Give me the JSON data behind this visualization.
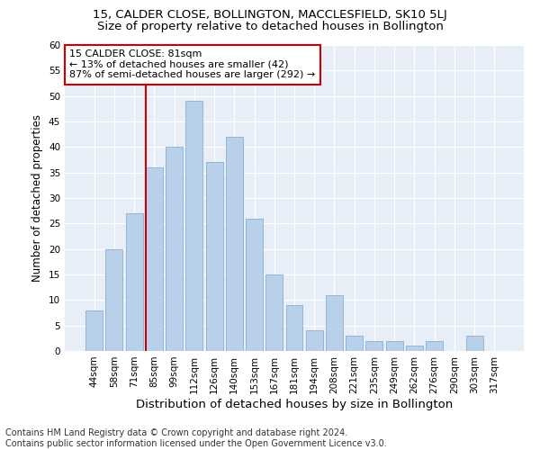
{
  "title": "15, CALDER CLOSE, BOLLINGTON, MACCLESFIELD, SK10 5LJ",
  "subtitle": "Size of property relative to detached houses in Bollington",
  "xlabel": "Distribution of detached houses by size in Bollington",
  "ylabel": "Number of detached properties",
  "categories": [
    "44sqm",
    "58sqm",
    "71sqm",
    "85sqm",
    "99sqm",
    "112sqm",
    "126sqm",
    "140sqm",
    "153sqm",
    "167sqm",
    "181sqm",
    "194sqm",
    "208sqm",
    "221sqm",
    "235sqm",
    "249sqm",
    "262sqm",
    "276sqm",
    "290sqm",
    "303sqm",
    "317sqm"
  ],
  "values": [
    8,
    20,
    27,
    36,
    40,
    49,
    37,
    42,
    26,
    15,
    9,
    4,
    11,
    3,
    2,
    2,
    1,
    2,
    0,
    3,
    0
  ],
  "bar_color": "#b8d0ea",
  "bar_edge_color": "#8ab0d0",
  "background_color": "#e8eef8",
  "grid_color": "#ffffff",
  "vline_color": "#cc0000",
  "vline_x_index": 2.57,
  "annotation_title": "15 CALDER CLOSE: 81sqm",
  "annotation_line1": "← 13% of detached houses are smaller (42)",
  "annotation_line2": "87% of semi-detached houses are larger (292) →",
  "annotation_box_color": "#ffffff",
  "annotation_box_edge": "#cc0000",
  "ylim": [
    0,
    60
  ],
  "yticks": [
    0,
    5,
    10,
    15,
    20,
    25,
    30,
    35,
    40,
    45,
    50,
    55,
    60
  ],
  "footer": "Contains HM Land Registry data © Crown copyright and database right 2024.\nContains public sector information licensed under the Open Government Licence v3.0.",
  "title_fontsize": 9.5,
  "subtitle_fontsize": 9.5,
  "xlabel_fontsize": 9.5,
  "ylabel_fontsize": 8.5,
  "tick_fontsize": 7.5,
  "annotation_fontsize": 8.0,
  "footer_fontsize": 7.0,
  "fig_width": 6.0,
  "fig_height": 5.0,
  "fig_dpi": 100
}
